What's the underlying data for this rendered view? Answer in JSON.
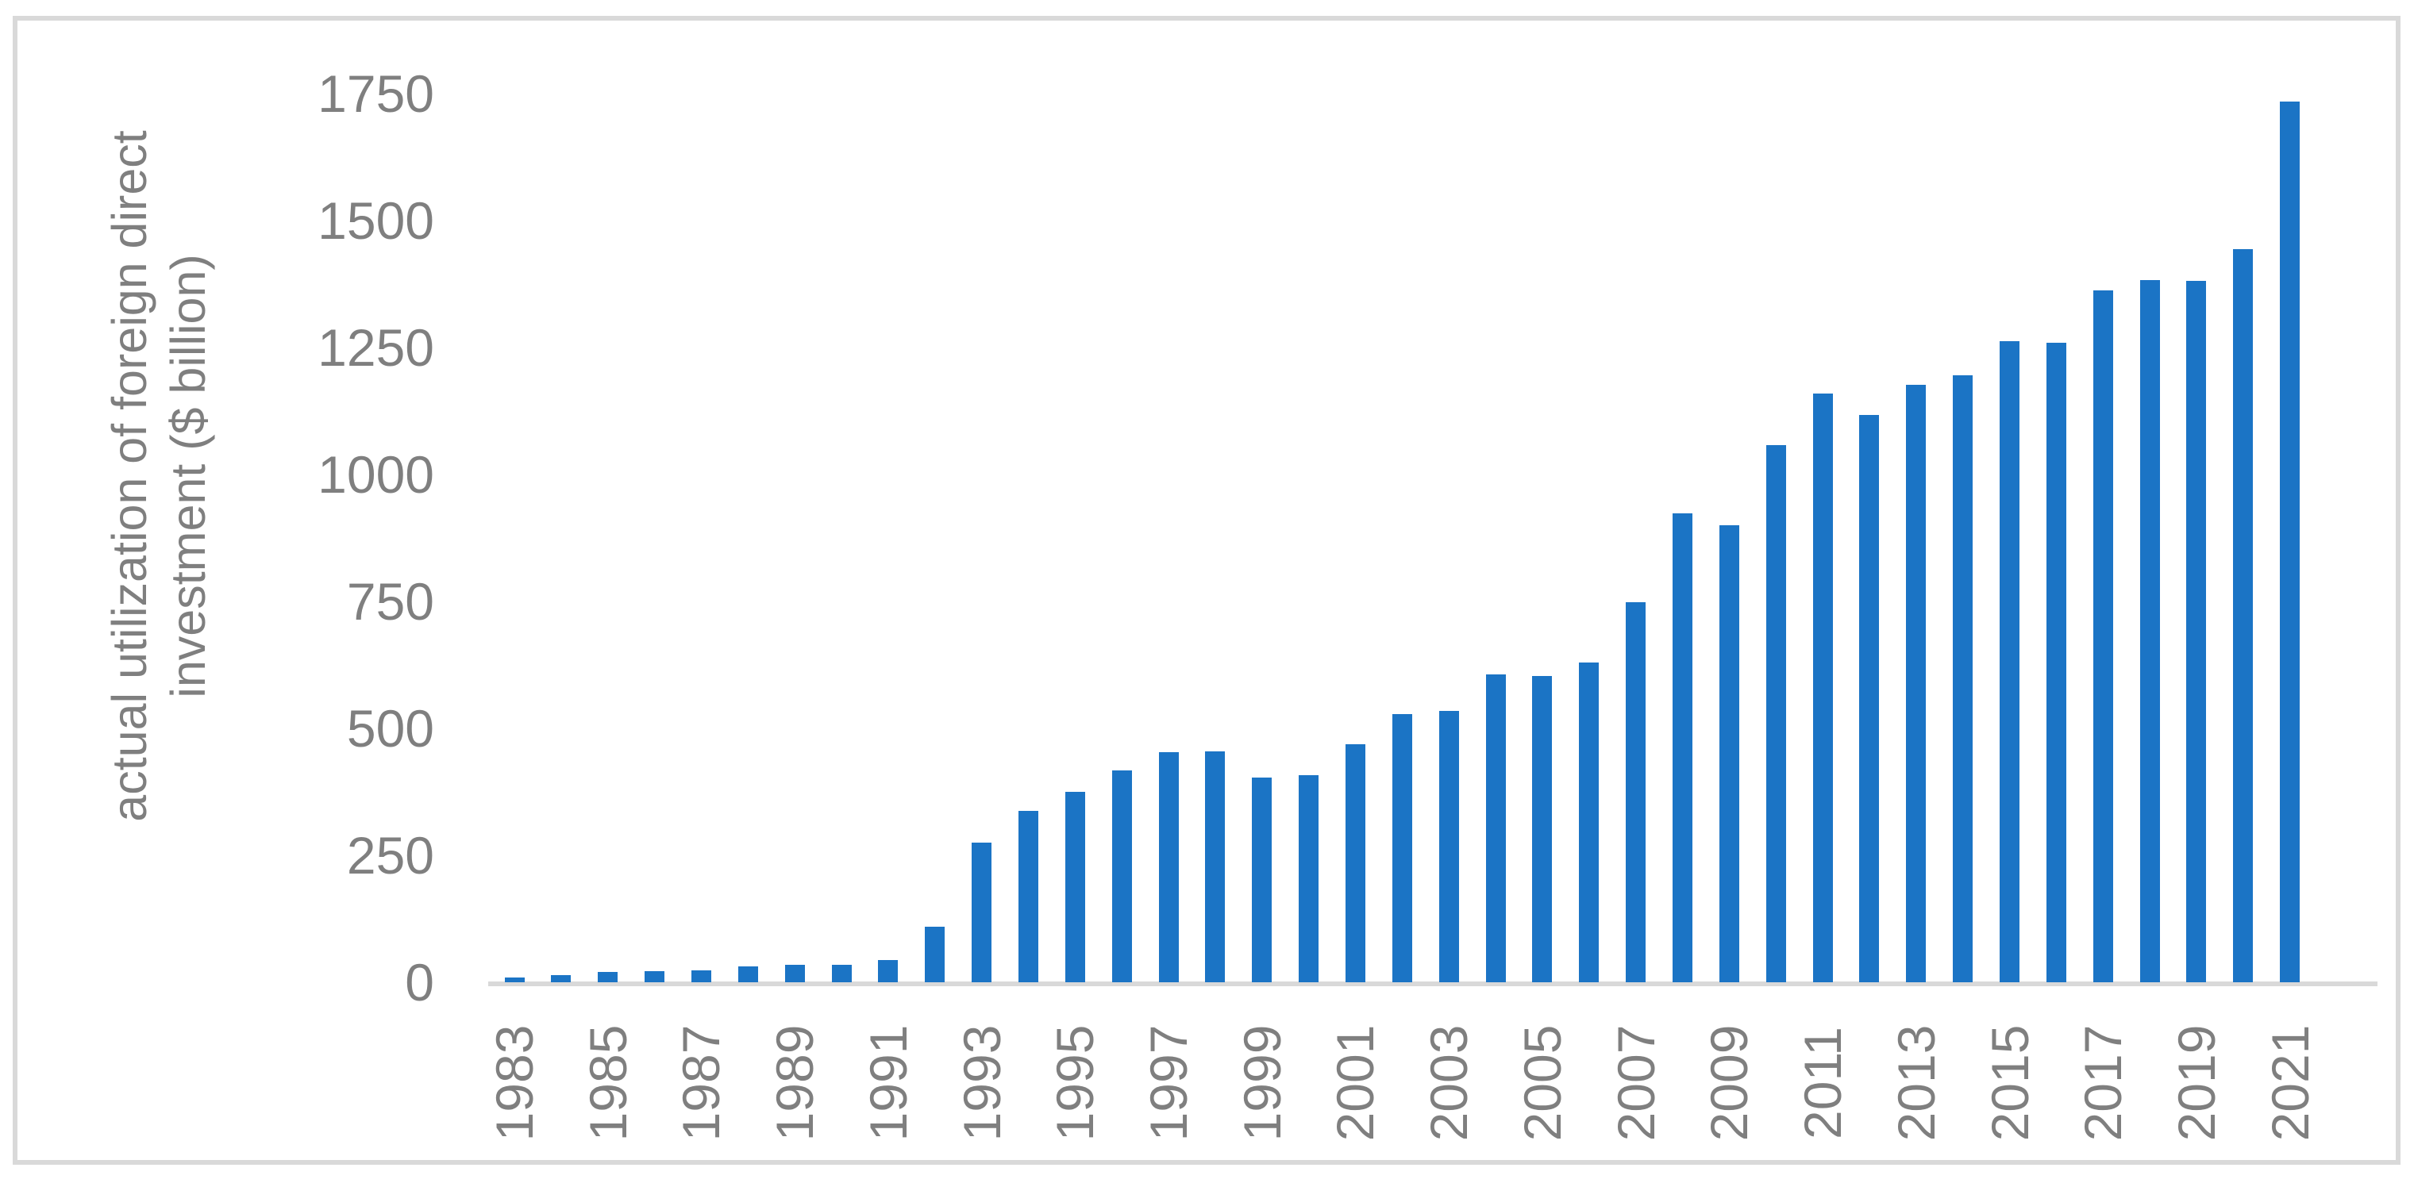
{
  "figure": {
    "ylabel_line1": "actual utilization of foreign direct",
    "ylabel_line2": "investment ($ billion)"
  },
  "chart_data": {
    "type": "bar",
    "title": "",
    "xlabel": "",
    "ylabel": "actual utilization of foreign direct investment ($ billion)",
    "categories": [
      1983,
      1984,
      1985,
      1986,
      1987,
      1988,
      1989,
      1990,
      1991,
      1992,
      1993,
      1994,
      1995,
      1996,
      1997,
      1998,
      1999,
      2000,
      2001,
      2002,
      2003,
      2004,
      2005,
      2006,
      2007,
      2008,
      2009,
      2010,
      2011,
      2012,
      2013,
      2014,
      2015,
      2016,
      2017,
      2018,
      2019,
      2020,
      2021
    ],
    "values": [
      9.2,
      14.2,
      19.6,
      22.4,
      23.1,
      31.9,
      33.9,
      34.9,
      43.7,
      110.1,
      275.2,
      337.7,
      375.2,
      417.3,
      452.6,
      454.6,
      403.2,
      407.2,
      468.8,
      527.4,
      535.1,
      606.3,
      603.3,
      630.2,
      747.7,
      924.0,
      900.3,
      1057.4,
      1160.1,
      1117.2,
      1175.9,
      1195.6,
      1262.7,
      1260.0,
      1363.2,
      1383.0,
      1381.4,
      1443.7,
      1734.8
    ],
    "ylim": [
      0,
      1750
    ],
    "yticks": [
      0,
      250,
      500,
      750,
      1000,
      1250,
      1500,
      1750
    ],
    "xtick_labels": [
      "1983",
      "1985",
      "1987",
      "1989",
      "1991",
      "1993",
      "1995",
      "1997",
      "1999",
      "2001",
      "2003",
      "2005",
      "2007",
      "2009",
      "2011",
      "2013",
      "2015",
      "2017",
      "2019",
      "2021"
    ],
    "grid": false,
    "legend": "none",
    "bar_color": "#1b74c5",
    "text_color": "#7f7f7f",
    "axis_line_color": "#d9d9d9"
  }
}
